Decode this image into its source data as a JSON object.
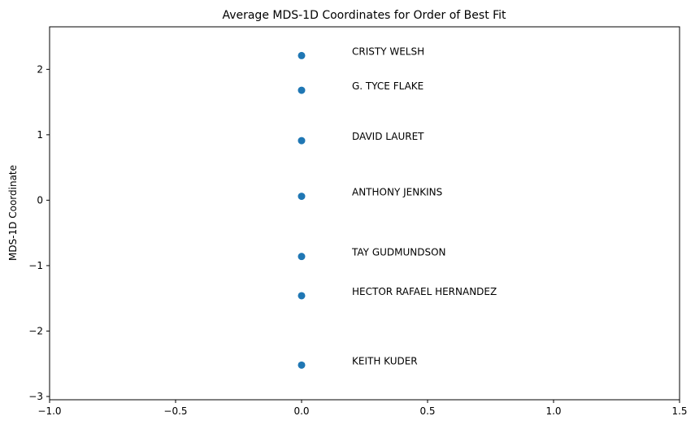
{
  "chart_data": {
    "type": "scatter",
    "title": "Average MDS-1D Coordinates for Order of Best Fit",
    "xlabel": "",
    "ylabel": "MDS-1D Coordinate",
    "xlim": [
      -1.0,
      1.5
    ],
    "ylim": [
      -3.05,
      2.65
    ],
    "xticks": [
      -1.0,
      -0.5,
      0.0,
      0.5,
      1.0,
      1.5
    ],
    "xtick_labels": [
      "−1.0",
      "−0.5",
      "0.0",
      "0.5",
      "1.0",
      "1.5"
    ],
    "yticks": [
      -3,
      -2,
      -1,
      0,
      1,
      2
    ],
    "ytick_labels": [
      "−3",
      "−2",
      "−1",
      "0",
      "1",
      "2"
    ],
    "grid": false,
    "marker_color": "#1f77b4",
    "label_x": 0.2,
    "points": [
      {
        "label": "CRISTY WELSH",
        "x": 0.0,
        "y": 2.21
      },
      {
        "label": "G. TYCE FLAKE",
        "x": 0.0,
        "y": 1.68
      },
      {
        "label": "DAVID LAURET",
        "x": 0.0,
        "y": 0.91
      },
      {
        "label": "ANTHONY JENKINS",
        "x": 0.0,
        "y": 0.06
      },
      {
        "label": "TAY GUDMUNDSON",
        "x": 0.0,
        "y": -0.86
      },
      {
        "label": "HECTOR RAFAEL HERNANDEZ",
        "x": 0.0,
        "y": -1.46
      },
      {
        "label": "KEITH KUDER",
        "x": 0.0,
        "y": -2.52
      }
    ]
  }
}
